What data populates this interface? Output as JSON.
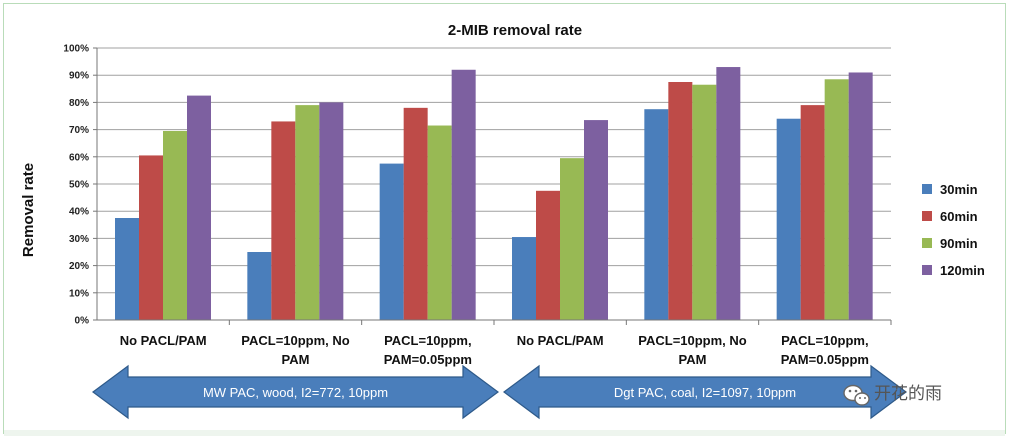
{
  "chart_data": {
    "type": "bar",
    "title": "2-MIB removal rate",
    "ylabel": "Removal rate",
    "xlabel": "",
    "ylim": [
      0,
      100
    ],
    "yticks": [
      "0%",
      "10%",
      "20%",
      "30%",
      "40%",
      "50%",
      "60%",
      "70%",
      "80%",
      "90%",
      "100%"
    ],
    "categories": [
      [
        "No PACL/PAM"
      ],
      [
        "PACL=10ppm, No",
        "PAM"
      ],
      [
        "PACL=10ppm,",
        "PAM=0.05ppm"
      ],
      [
        "No PACL/PAM"
      ],
      [
        "PACL=10ppm, No",
        "PAM"
      ],
      [
        "PACL=10ppm,",
        "PAM=0.05ppm"
      ]
    ],
    "series": [
      {
        "name": "30min",
        "color": "#4a7ebb",
        "values": [
          37.5,
          25,
          57.5,
          30.5,
          77.5,
          74
        ]
      },
      {
        "name": "60min",
        "color": "#be4b48",
        "values": [
          60.5,
          73,
          78,
          47.5,
          87.5,
          79
        ]
      },
      {
        "name": "90min",
        "color": "#98b954",
        "values": [
          69.5,
          79,
          71.5,
          59.5,
          86.5,
          88.5
        ]
      },
      {
        "name": "120min",
        "color": "#7d60a0",
        "values": [
          82.5,
          80,
          92,
          73.5,
          93,
          91
        ]
      }
    ],
    "legend_position": "right",
    "groups": [
      {
        "label": "MW PAC, wood, I2=772, 10ppm"
      },
      {
        "label": "Dgt PAC, coal, I2=1097, 10ppm"
      }
    ]
  },
  "watermark": {
    "icon": "wechat-icon",
    "text": "开花的雨"
  },
  "colors": {
    "arrow": "#4a7ebb",
    "arrow_border": "#2e5a8a",
    "gridline": "#a0a0a0"
  }
}
